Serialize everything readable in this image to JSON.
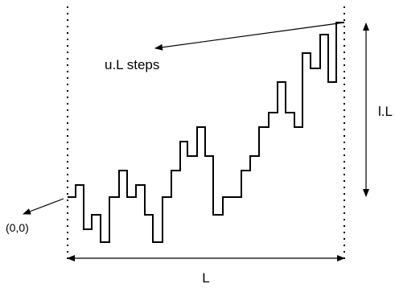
{
  "labels": {
    "steps": "u.L steps",
    "height": "l.L",
    "width": "L",
    "origin": "(0,0)"
  }
}
